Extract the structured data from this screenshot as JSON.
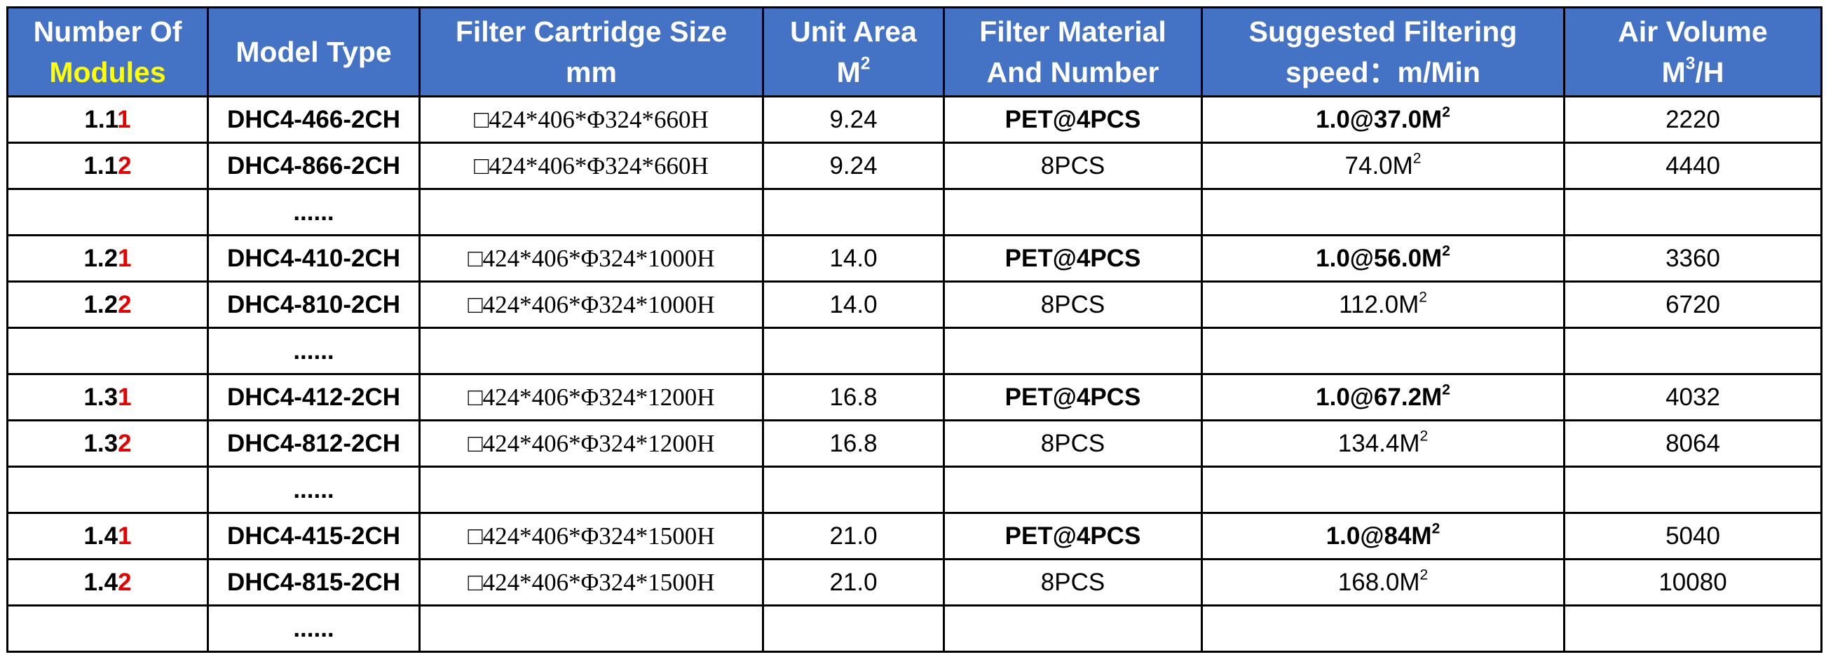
{
  "colors": {
    "header_bg": "#4472c4",
    "header_text": "#ffffff",
    "header_highlight": "#ffff00",
    "suffix_red": "#e60000"
  },
  "header": {
    "col1_line1": "Number Of",
    "col1_line2": "Modules",
    "col2": "Model Type",
    "col3_line1": "Filter Cartridge Size",
    "col3_line2": "mm",
    "col4_line1": "Unit Area",
    "col4_line2": "M",
    "col4_sup": "2",
    "col5_line1": "Filter Material",
    "col5_line2": "And Number",
    "col6_line1": "Suggested Filtering",
    "col6_line2": "speed：m/Min",
    "col7_line1": "Air Volume",
    "col7_line2_pre": "M",
    "col7_sup": "3",
    "col7_line2_post": "/H"
  },
  "rows": [
    {
      "num_prefix": "1.1",
      "num_suffix": "1",
      "model": "DHC4-466-2CH",
      "size": "□424*406*Φ324*660H",
      "area": "9.24",
      "material": "PET@4PCS",
      "speed": "1.0@37.0M",
      "speed_sup": "2",
      "air": "2220"
    },
    {
      "num_prefix": "1.1",
      "num_suffix": "2",
      "model": "DHC4-866-2CH",
      "size": "□424*406*Φ324*660H",
      "area": "9.24",
      "material": "8PCS",
      "speed": "74.0M",
      "speed_sup": "2",
      "air": "4440"
    },
    {
      "ellipsis": "......"
    },
    {
      "num_prefix": "1.2",
      "num_suffix": "1",
      "model": "DHC4-410-2CH",
      "size": "□424*406*Φ324*1000H",
      "area": "14.0",
      "material": "PET@4PCS",
      "speed": "1.0@56.0M",
      "speed_sup": "2",
      "air": "3360"
    },
    {
      "num_prefix": "1.2",
      "num_suffix": "2",
      "model": "DHC4-810-2CH",
      "size": "□424*406*Φ324*1000H",
      "area": "14.0",
      "material": "8PCS",
      "speed": "112.0M",
      "speed_sup": "2",
      "air": "6720"
    },
    {
      "ellipsis": "......"
    },
    {
      "num_prefix": "1.3",
      "num_suffix": "1",
      "model": "DHC4-412-2CH",
      "size": "□424*406*Φ324*1200H",
      "area": "16.8",
      "material": "PET@4PCS",
      "speed": "1.0@67.2M",
      "speed_sup": "2",
      "air": "4032"
    },
    {
      "num_prefix": "1.3",
      "num_suffix": "2",
      "model": "DHC4-812-2CH",
      "size": "□424*406*Φ324*1200H",
      "area": "16.8",
      "material": "8PCS",
      "speed": "134.4M",
      "speed_sup": "2",
      "air": "8064"
    },
    {
      "ellipsis": "......"
    },
    {
      "num_prefix": "1.4",
      "num_suffix": "1",
      "model": "DHC4-415-2CH",
      "size": "□424*406*Φ324*1500H",
      "area": "21.0",
      "material": "PET@4PCS",
      "speed": "1.0@84M",
      "speed_sup": "2",
      "air": "5040"
    },
    {
      "num_prefix": "1.4",
      "num_suffix": "2",
      "model": "DHC4-815-2CH",
      "size": "□424*406*Φ324*1500H",
      "area": "21.0",
      "material": "8PCS",
      "speed": "168.0M",
      "speed_sup": "2",
      "air": "10080"
    },
    {
      "ellipsis": "......"
    }
  ]
}
